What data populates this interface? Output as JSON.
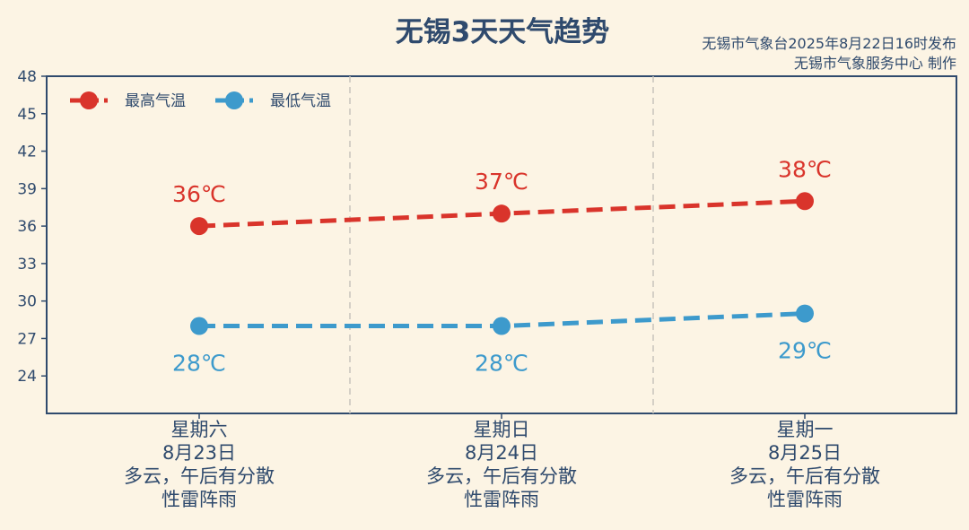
{
  "title": "无锡3天天气趋势",
  "issuer": {
    "line1": "无锡市气象台2025年8月22日16时发布",
    "line2": "无锡市气象服务中心 制作"
  },
  "colors": {
    "high": "#d9342b",
    "low": "#3d9acc",
    "axis": "#2f4a6d",
    "background": "#fcf4e4",
    "divider": "#c8c4bc"
  },
  "chart_data": {
    "type": "line",
    "categories": [
      "星期六",
      "星期日",
      "星期一"
    ],
    "dates": [
      "8月23日",
      "8月24日",
      "8月25日"
    ],
    "weather": [
      [
        "多云，午后有分散",
        "性雷阵雨"
      ],
      [
        "多云，午后有分散",
        "性雷阵雨"
      ],
      [
        "多云，午后有分散",
        "性雷阵雨"
      ]
    ],
    "series": [
      {
        "name": "最高气温",
        "values": [
          36,
          37,
          38
        ],
        "labels": [
          "36℃",
          "37℃",
          "38℃"
        ]
      },
      {
        "name": "最低气温",
        "values": [
          28,
          28,
          29
        ],
        "labels": [
          "28℃",
          "28℃",
          "29℃"
        ]
      }
    ],
    "ylim": [
      21,
      48
    ],
    "yticks": [
      24,
      27,
      30,
      33,
      36,
      39,
      42,
      45,
      48
    ],
    "legend": "top-left",
    "grid": false
  }
}
